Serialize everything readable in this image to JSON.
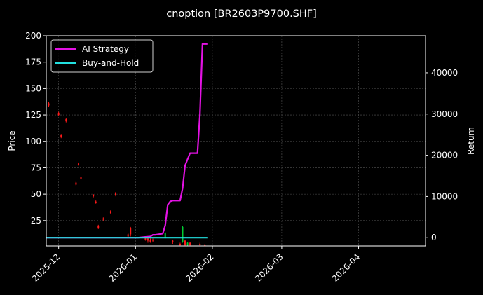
{
  "chart_data": {
    "type": "line",
    "title": "cnoption [BR2603P9700.SHF]",
    "xlabel": "",
    "ylabel": "Price",
    "y2label": "Return",
    "grid": true,
    "legend_position": "top-left",
    "x_ticks": [
      "2025-12",
      "2026-01",
      "2026-02",
      "2026-03",
      "2026-04"
    ],
    "xlim": [
      "2025-11-26",
      "2026-04-28"
    ],
    "ylim": [
      1,
      200
    ],
    "y_ticks": [
      25,
      50,
      75,
      100,
      125,
      150,
      175,
      200
    ],
    "y2lim": [
      -2000,
      49000
    ],
    "y2_ticks": [
      0,
      10000,
      20000,
      30000,
      40000
    ],
    "colors": {
      "background": "#000000",
      "ai_strategy": "#e312e3",
      "buy_and_hold": "#22e0e0",
      "up_candle": "#00cc33",
      "down_candle": "#ff1a1a",
      "grid": "#555555",
      "axes": "#ffffff"
    },
    "series": [
      {
        "name": "AI Strategy",
        "axis": "right",
        "x": [
          "2025-11-26",
          "2025-12-20",
          "2025-12-25",
          "2025-12-31",
          "2026-01-02",
          "2026-01-05",
          "2026-01-07",
          "2026-01-08",
          "2026-01-09",
          "2026-01-12",
          "2026-01-13",
          "2026-01-14",
          "2026-01-15",
          "2026-01-16",
          "2026-01-19",
          "2026-01-20",
          "2026-01-21",
          "2026-01-22",
          "2026-01-23",
          "2026-01-26",
          "2026-01-27",
          "2026-01-28",
          "2026-01-29",
          "2026-01-30"
        ],
        "values": [
          0,
          0,
          0,
          0,
          0,
          200,
          300,
          700,
          700,
          1000,
          3000,
          8000,
          8800,
          9000,
          9000,
          12000,
          17500,
          19000,
          20500,
          20500,
          30000,
          47000,
          47000,
          47000
        ]
      },
      {
        "name": "Buy-and-Hold",
        "axis": "right",
        "x": [
          "2025-11-26",
          "2026-01-30"
        ],
        "values": [
          0,
          0
        ]
      }
    ],
    "candles": [
      {
        "date": "2025-11-27",
        "open": 136,
        "close": 134,
        "high": 137,
        "low": 133
      },
      {
        "date": "2025-12-01",
        "open": 127,
        "close": 125,
        "high": 128,
        "low": 124
      },
      {
        "date": "2025-12-02",
        "open": 106,
        "close": 104,
        "high": 107,
        "low": 103
      },
      {
        "date": "2025-12-04",
        "open": 121,
        "close": 119,
        "high": 122,
        "low": 118
      },
      {
        "date": "2025-12-08",
        "open": 61,
        "close": 59,
        "high": 62,
        "low": 58
      },
      {
        "date": "2025-12-09",
        "open": 79,
        "close": 78,
        "high": 80,
        "low": 77
      },
      {
        "date": "2025-12-10",
        "open": 66,
        "close": 64,
        "high": 67,
        "low": 63
      },
      {
        "date": "2025-12-15",
        "open": 49,
        "close": 48,
        "high": 50,
        "low": 47
      },
      {
        "date": "2025-12-16",
        "open": 43,
        "close": 42,
        "high": 44,
        "low": 41
      },
      {
        "date": "2025-12-17",
        "open": 20,
        "close": 18,
        "high": 21,
        "low": 17
      },
      {
        "date": "2025-12-19",
        "open": 27,
        "close": 26,
        "high": 28,
        "low": 25
      },
      {
        "date": "2025-12-22",
        "open": 34,
        "close": 32,
        "high": 35,
        "low": 31
      },
      {
        "date": "2025-12-24",
        "open": 51,
        "close": 49,
        "high": 52,
        "low": 48
      },
      {
        "date": "2025-12-29",
        "open": 12,
        "close": 10,
        "high": 13,
        "low": 9
      },
      {
        "date": "2025-12-30",
        "open": 18,
        "close": 12,
        "high": 19,
        "low": 10
      },
      {
        "date": "2026-01-05",
        "open": 9,
        "close": 7,
        "high": 10,
        "low": 6
      },
      {
        "date": "2026-01-06",
        "open": 8,
        "close": 6,
        "high": 9,
        "low": 4
      },
      {
        "date": "2026-01-07",
        "open": 7,
        "close": 5,
        "high": 8,
        "low": 4
      },
      {
        "date": "2026-01-08",
        "open": 7,
        "close": 6,
        "high": 8,
        "low": 5
      },
      {
        "date": "2026-01-13",
        "open": 9,
        "close": 13,
        "high": 14,
        "low": 8
      },
      {
        "date": "2026-01-16",
        "open": 6,
        "close": 5,
        "high": 7,
        "low": 3
      },
      {
        "date": "2026-01-19",
        "open": 3,
        "close": 2,
        "high": 4,
        "low": 1
      },
      {
        "date": "2026-01-20",
        "open": 5,
        "close": 19,
        "high": 20,
        "low": 4
      },
      {
        "date": "2026-01-21",
        "open": 6,
        "close": 2,
        "high": 7,
        "low": 1
      },
      {
        "date": "2026-01-22",
        "open": 2,
        "close": 4,
        "high": 5,
        "low": 1
      },
      {
        "date": "2026-01-23",
        "open": 4,
        "close": 2,
        "high": 5,
        "low": 1
      },
      {
        "date": "2026-01-27",
        "open": 3,
        "close": 2,
        "high": 4,
        "low": 1
      },
      {
        "date": "2026-01-29",
        "open": 2,
        "close": 1,
        "high": 3,
        "low": 1
      }
    ]
  }
}
